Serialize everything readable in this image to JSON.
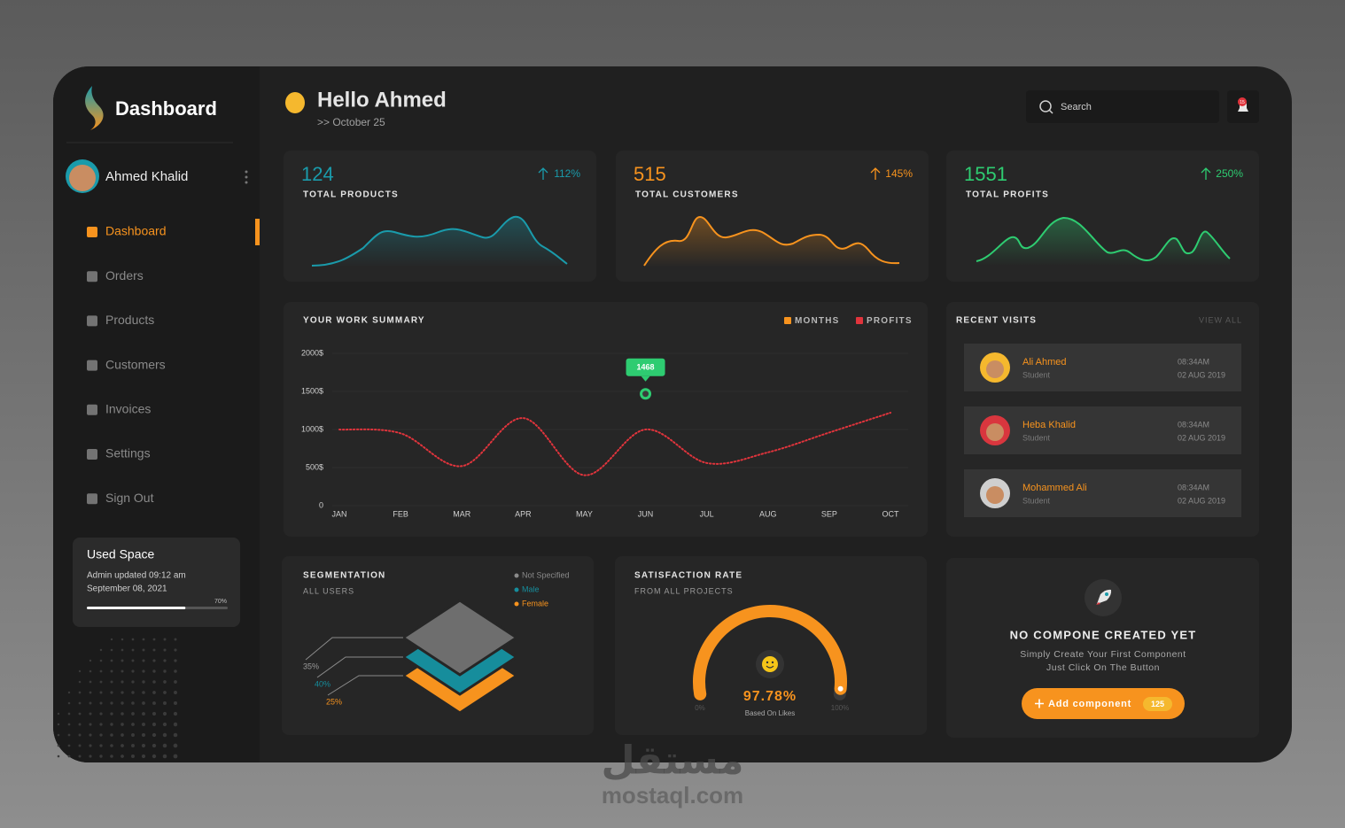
{
  "sidebar": {
    "brand": "Dashboard",
    "user": "Ahmed Khalid",
    "nav": [
      "Dashboard",
      "Orders",
      "Products",
      "Customers",
      "Invoices",
      "Settings",
      "Sign Out"
    ],
    "used_space": {
      "title": "Used Space",
      "note_line1": "Admin updated 09:12 am",
      "note_line2": "September 08, 2021",
      "percent": 70,
      "percent_label": "70%"
    }
  },
  "header": {
    "greeting": "Hello Ahmed",
    "date": ">> October 25",
    "search_placeholder": "Search",
    "notifications": "15"
  },
  "stats": [
    {
      "value": "124",
      "label": "TOTAL PRODUCTS",
      "change": "112%",
      "color": "#1a9bab"
    },
    {
      "value": "515",
      "label": "TOTAL CUSTOMERS",
      "change": "145%",
      "color": "#f7931e"
    },
    {
      "value": "1551",
      "label": "TOTAL PROFITS",
      "change": "250%",
      "color": "#2ecc71"
    }
  ],
  "chart_data": {
    "type": "line",
    "title": "YOUR WORK SUMMARY",
    "legend": [
      {
        "name": "MONTHS",
        "color": "#f7931e"
      },
      {
        "name": "PROFITS",
        "color": "#e0343c"
      }
    ],
    "categories": [
      "JAN",
      "FEB",
      "MAR",
      "APR",
      "MAY",
      "JUN",
      "JUL",
      "AUG",
      "SEP",
      "OCT"
    ],
    "series": [
      {
        "color": "#e0343c",
        "values": [
          1000,
          950,
          520,
          1150,
          400,
          1000,
          560,
          700,
          960,
          1220
        ]
      }
    ],
    "ylim": [
      0,
      2000
    ],
    "yticks": [
      0,
      {
        "value": 500,
        "label": "500$"
      },
      {
        "value": 1000,
        "label": "1000$"
      },
      {
        "value": 1500,
        "label": "1500$"
      },
      {
        "value": 2000,
        "label": "2000$"
      }
    ],
    "grid": true,
    "annotation": {
      "category": "JUN",
      "value": 1468,
      "color": "#2ecc71"
    }
  },
  "recent_visits": {
    "title": "RECENT VISITS",
    "view_all": "VIEW ALL",
    "items": [
      {
        "name": "Ali Ahmed",
        "role": "Student",
        "time": "08:34AM",
        "date": "02 AUG 2019",
        "color": "#f5b82e"
      },
      {
        "name": "Heba Khalid",
        "role": "Student",
        "time": "08:34AM",
        "date": "02 AUG 2019",
        "color": "#d9363e"
      },
      {
        "name": "Mohammed Ali",
        "role": "Student",
        "time": "08:34AM",
        "date": "02 AUG 2019",
        "color": "#cfcfcf"
      }
    ]
  },
  "segmentation": {
    "title": "SEGMENTATION",
    "subtitle": "ALL USERS",
    "legend": [
      {
        "name": "Not Specified",
        "color": "#8a8a8a"
      },
      {
        "name": "Male",
        "color": "#168d9c"
      },
      {
        "name": "Female",
        "color": "#f7931e"
      }
    ],
    "labels": [
      {
        "text": "35%",
        "color": "#9a9a9a"
      },
      {
        "text": "40%",
        "color": "#168d9c"
      },
      {
        "text": "25%",
        "color": "#f7931e"
      }
    ]
  },
  "satisfaction": {
    "title": "SATISFACTION RATE",
    "subtitle": "FROM ALL PROJECTS",
    "value": 97.78,
    "value_label": "97.78%",
    "caption": "Based On Likes",
    "min_label": "0%",
    "max_label": "100%"
  },
  "empty_state": {
    "title": "NO COMPONE CREATED YET",
    "line1": "Simply Create Your First Component",
    "line2": "Just Click On The Button",
    "button": "Add component",
    "badge": "125"
  },
  "watermark": {
    "arabic": "مستقل",
    "latin": "mostaql.com"
  }
}
